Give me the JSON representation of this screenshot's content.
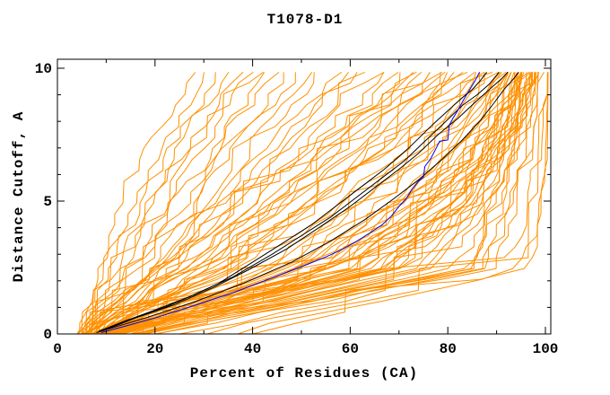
{
  "chart_data": {
    "type": "line",
    "title": "T1078-D1",
    "xlabel": "Percent of Residues (CA)",
    "ylabel": "Distance Cutoff, A",
    "xlim": [
      0,
      100
    ],
    "ylim": [
      0,
      10
    ],
    "x_major_ticks": [
      0,
      20,
      40,
      60,
      80,
      100
    ],
    "x_minor_ticks": [
      10,
      30,
      50,
      70,
      90
    ],
    "y_major_ticks": [
      0,
      5,
      10
    ],
    "y_minor_ticks": [
      1,
      2,
      3,
      4,
      6,
      7,
      8,
      9
    ],
    "grid": false,
    "legend": "none",
    "frame": "box-with-inward-ticks",
    "colors": {
      "orange": "#ff9000",
      "black": "#000000",
      "blue": "#0000ee"
    },
    "series": {
      "orange_models": {
        "color": "orange",
        "count": 85,
        "anchor_y": [
          0,
          2.5,
          5,
          7.5,
          9.85
        ],
        "curves_x_anchors": [
          [
            5,
            8.5,
            13.5,
            20,
            29
          ],
          [
            4,
            10,
            16,
            23,
            31
          ],
          [
            5,
            11,
            17,
            25,
            33
          ],
          [
            4,
            12,
            19,
            26,
            35
          ],
          [
            6,
            13,
            20,
            28,
            37
          ],
          [
            5,
            14,
            22,
            30,
            39
          ],
          [
            4,
            15,
            23,
            31,
            41
          ],
          [
            6,
            16,
            25,
            33,
            43
          ],
          [
            5,
            17,
            26,
            35,
            45
          ],
          [
            6,
            18,
            28,
            37,
            47
          ],
          [
            4,
            19,
            29,
            39,
            49
          ],
          [
            6,
            20,
            31,
            41,
            52
          ],
          [
            5,
            21,
            32,
            43,
            55
          ],
          [
            6,
            22,
            34,
            45,
            58
          ],
          [
            5,
            23,
            35,
            47,
            60
          ],
          [
            7,
            24,
            37,
            49,
            62
          ],
          [
            5,
            25,
            38,
            51,
            64
          ],
          [
            7,
            26,
            40,
            53,
            66
          ],
          [
            6,
            27,
            41,
            55,
            68
          ],
          [
            7,
            28,
            43,
            57,
            70
          ],
          [
            5,
            29,
            44,
            58,
            72
          ],
          [
            7,
            30,
            46,
            60,
            74
          ],
          [
            6,
            31,
            47,
            62,
            76
          ],
          [
            7,
            32,
            49,
            64,
            78
          ],
          [
            6,
            33,
            50,
            66,
            80
          ],
          [
            8,
            34,
            52,
            68,
            82
          ],
          [
            6,
            35,
            53,
            70,
            84
          ],
          [
            8,
            30,
            48,
            66,
            79
          ],
          [
            6,
            26,
            44,
            63,
            77
          ],
          [
            8,
            22,
            40,
            60,
            75
          ],
          [
            7,
            20,
            38,
            58,
            73
          ],
          [
            8,
            36,
            54,
            69,
            81
          ],
          [
            7,
            37,
            55,
            71,
            83
          ],
          [
            8,
            35,
            55,
            72,
            85
          ],
          [
            7,
            38,
            58,
            74,
            86
          ],
          [
            9,
            40,
            60,
            76,
            87
          ],
          [
            8,
            42,
            62,
            77,
            88
          ],
          [
            7,
            44,
            63,
            78,
            88.5
          ],
          [
            9,
            45,
            65,
            79,
            89
          ],
          [
            8,
            46,
            66,
            80,
            89.5
          ],
          [
            7,
            48,
            68,
            81,
            90
          ],
          [
            9,
            49,
            69,
            82,
            90.5
          ],
          [
            8,
            50,
            70,
            83,
            91
          ],
          [
            9,
            51,
            71,
            83.5,
            91.5
          ],
          [
            8,
            52,
            72,
            84,
            92
          ],
          [
            9,
            53,
            73,
            85,
            92.5
          ],
          [
            8,
            54,
            74,
            85.5,
            93
          ],
          [
            10,
            55,
            75,
            86,
            93.5
          ],
          [
            9,
            56,
            76,
            87,
            94
          ],
          [
            10,
            57,
            77,
            87.5,
            94.5
          ],
          [
            9,
            58,
            77.5,
            88,
            95
          ],
          [
            10,
            59,
            78,
            88.5,
            95.5
          ],
          [
            9,
            60,
            79,
            89,
            96
          ],
          [
            10,
            61,
            80,
            89.5,
            96.5
          ],
          [
            11,
            62,
            80.5,
            90,
            97
          ],
          [
            10,
            63,
            81,
            90.5,
            93
          ],
          [
            11,
            64,
            82,
            91,
            94
          ],
          [
            10,
            65,
            82.5,
            91.5,
            95
          ],
          [
            11,
            66,
            83,
            92,
            96
          ],
          [
            12,
            67,
            84,
            92.5,
            96.5
          ],
          [
            11,
            68,
            85,
            93,
            97
          ],
          [
            12,
            69,
            85.5,
            93.5,
            97
          ],
          [
            11,
            70,
            86,
            94,
            96
          ],
          [
            12,
            71,
            87,
            94.5,
            97
          ],
          [
            13,
            72,
            88,
            95,
            97.5
          ],
          [
            12,
            60,
            78,
            90,
            95
          ],
          [
            13,
            55,
            76,
            89,
            94
          ],
          [
            12,
            50,
            74,
            88,
            93
          ],
          [
            14,
            70,
            82,
            90,
            94
          ],
          [
            15,
            72,
            84,
            91,
            95
          ],
          [
            14,
            74,
            85,
            92,
            95.5
          ],
          [
            16,
            76,
            86,
            92.5,
            96
          ],
          [
            15,
            78,
            87,
            93,
            96.5
          ],
          [
            16,
            80,
            88,
            93.5,
            97
          ],
          [
            15,
            82,
            89,
            94,
            97
          ],
          [
            17,
            84,
            90,
            94.5,
            97.5
          ],
          [
            16,
            85,
            90.5,
            95,
            97.5
          ],
          [
            18,
            86,
            91,
            95.5,
            98
          ],
          [
            17,
            87,
            92,
            96,
            98
          ],
          [
            19,
            88,
            93,
            96.5,
            98.5
          ],
          [
            20,
            90,
            95,
            97.5,
            99
          ],
          [
            25,
            92,
            96.5,
            98,
            99.3
          ],
          [
            30,
            94,
            97.5,
            98.7,
            99.6
          ],
          [
            35,
            96,
            98.5,
            99.3,
            99.8
          ],
          [
            40,
            97,
            99,
            99.6,
            100
          ]
        ]
      },
      "black_models": {
        "color": "black",
        "count": 4,
        "curves_points": [
          [
            [
              8.5,
              0.1
            ],
            [
              14,
              0.5
            ],
            [
              20,
              0.9
            ],
            [
              27,
              1.4
            ],
            [
              33,
              1.9
            ],
            [
              40,
              2.7
            ],
            [
              46,
              3.4
            ],
            [
              52,
              4.1
            ],
            [
              57,
              4.8
            ],
            [
              62,
              5.5
            ],
            [
              67,
              6.2
            ],
            [
              72,
              7.0
            ],
            [
              77,
              7.9
            ],
            [
              80,
              8.4
            ],
            [
              83,
              8.9
            ],
            [
              85,
              9.2
            ],
            [
              86.5,
              9.5
            ],
            [
              88,
              9.85
            ]
          ],
          [
            [
              8.5,
              0.1
            ],
            [
              15,
              0.55
            ],
            [
              22,
              1.0
            ],
            [
              29,
              1.55
            ],
            [
              36,
              2.15
            ],
            [
              44,
              3.0
            ],
            [
              50,
              3.7
            ],
            [
              56,
              4.4
            ],
            [
              61,
              5.1
            ],
            [
              66,
              5.8
            ],
            [
              71,
              6.5
            ],
            [
              75,
              7.2
            ],
            [
              79,
              7.9
            ],
            [
              83,
              8.6
            ],
            [
              86,
              9.0
            ],
            [
              88.5,
              9.4
            ],
            [
              90.5,
              9.85
            ]
          ],
          [
            [
              9,
              0.1
            ],
            [
              16,
              0.6
            ],
            [
              24,
              1.1
            ],
            [
              32,
              1.75
            ],
            [
              39,
              2.4
            ],
            [
              47,
              3.2
            ],
            [
              54,
              4.05
            ],
            [
              60,
              4.8
            ],
            [
              65,
              5.5
            ],
            [
              70,
              6.2
            ],
            [
              74,
              6.8
            ],
            [
              78,
              7.5
            ],
            [
              82,
              8.1
            ],
            [
              85.5,
              8.7
            ],
            [
              88.5,
              9.2
            ],
            [
              91,
              9.6
            ],
            [
              92.3,
              9.85
            ]
          ],
          [
            [
              8,
              0.05
            ],
            [
              18,
              0.6
            ],
            [
              28,
              1.2
            ],
            [
              38,
              1.9
            ],
            [
              48,
              2.7
            ],
            [
              56,
              3.5
            ],
            [
              63,
              4.3
            ],
            [
              69,
              5.1
            ],
            [
              74,
              5.8
            ],
            [
              79,
              6.6
            ],
            [
              83,
              7.3
            ],
            [
              86.5,
              8.0
            ],
            [
              89.5,
              8.7
            ],
            [
              91.5,
              9.2
            ],
            [
              93.5,
              9.6
            ],
            [
              94.5,
              9.85
            ]
          ]
        ]
      },
      "blue_model": {
        "color": "blue",
        "count": 1,
        "points": [
          [
            9,
            0.05
          ],
          [
            14,
            0.3
          ],
          [
            20,
            0.6
          ],
          [
            26,
            0.95
          ],
          [
            31,
            1.25
          ],
          [
            36,
            1.55
          ],
          [
            41,
            1.9
          ],
          [
            46,
            2.25
          ],
          [
            51,
            2.6
          ],
          [
            55,
            2.9
          ],
          [
            58,
            3.15
          ],
          [
            61,
            3.45
          ],
          [
            64,
            3.8
          ],
          [
            66.5,
            4.1
          ],
          [
            68.5,
            4.45
          ],
          [
            70,
            4.8
          ],
          [
            71.5,
            5.1
          ],
          [
            72.7,
            5.45
          ],
          [
            74,
            5.75
          ],
          [
            75,
            5.9
          ],
          [
            75.3,
            6.3
          ],
          [
            76.5,
            6.6
          ],
          [
            77.5,
            6.95
          ],
          [
            78.3,
            7.25
          ],
          [
            80,
            7.3
          ],
          [
            80.3,
            7.85
          ],
          [
            81,
            8.1
          ],
          [
            82,
            8.4
          ],
          [
            83.2,
            8.8
          ],
          [
            84.5,
            9.2
          ],
          [
            85.5,
            9.5
          ],
          [
            86.5,
            9.85
          ]
        ]
      }
    }
  }
}
